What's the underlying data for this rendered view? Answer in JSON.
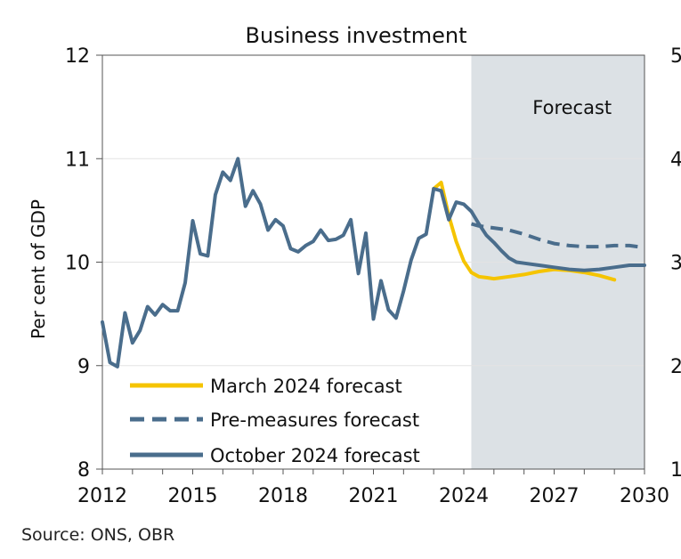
{
  "chart_data": {
    "type": "line",
    "title": "Business investment",
    "ylabel": "Per cent of GDP",
    "xlabel": "",
    "ylim": [
      8,
      12
    ],
    "yticks": [
      8,
      9,
      10,
      11,
      12
    ],
    "xlim": [
      2012,
      2030
    ],
    "xticks": [
      "2012",
      "2015",
      "2018",
      "2021",
      "2024",
      "2027",
      "2030"
    ],
    "forecast_region": {
      "label": "Forecast",
      "start": 2024.25,
      "end": 2030
    },
    "right_axis_partial_ticks": [
      "5",
      "4",
      "3",
      "2",
      "1"
    ],
    "legend": [
      "March 2024 forecast",
      "Pre-measures forecast",
      "October 2024 forecast"
    ],
    "series": [
      {
        "name": "October 2024 forecast",
        "style": "solid",
        "color": "#4a6d8c",
        "x": [
          2012.0,
          2012.25,
          2012.5,
          2012.75,
          2013.0,
          2013.25,
          2013.5,
          2013.75,
          2014.0,
          2014.25,
          2014.5,
          2014.75,
          2015.0,
          2015.25,
          2015.5,
          2015.75,
          2016.0,
          2016.25,
          2016.5,
          2016.75,
          2017.0,
          2017.25,
          2017.5,
          2017.75,
          2018.0,
          2018.25,
          2018.5,
          2018.75,
          2019.0,
          2019.25,
          2019.5,
          2019.75,
          2020.0,
          2020.25,
          2020.5,
          2020.75,
          2021.0,
          2021.25,
          2021.5,
          2021.75,
          2022.0,
          2022.25,
          2022.5,
          2022.75,
          2023.0,
          2023.25,
          2023.5,
          2023.75,
          2024.0,
          2024.25,
          2024.5,
          2024.75,
          2025.0,
          2025.25,
          2025.5,
          2025.75,
          2026.0,
          2026.5,
          2027.0,
          2027.5,
          2028.0,
          2028.5,
          2029.0,
          2029.5,
          2030.0
        ],
        "values": [
          9.42,
          9.03,
          8.99,
          9.51,
          9.22,
          9.34,
          9.57,
          9.49,
          9.59,
          9.53,
          9.53,
          9.8,
          10.4,
          10.08,
          10.06,
          10.65,
          10.87,
          10.79,
          11.0,
          10.54,
          10.69,
          10.56,
          10.31,
          10.41,
          10.35,
          10.13,
          10.1,
          10.16,
          10.2,
          10.31,
          10.21,
          10.22,
          10.26,
          10.41,
          9.89,
          10.28,
          9.45,
          9.82,
          9.54,
          9.46,
          9.72,
          10.02,
          10.23,
          10.27,
          10.71,
          10.69,
          10.41,
          10.58,
          10.56,
          10.49,
          10.37,
          10.26,
          10.19,
          10.11,
          10.04,
          10.0,
          9.99,
          9.97,
          9.95,
          9.93,
          9.92,
          9.93,
          9.95,
          9.97,
          9.97
        ]
      },
      {
        "name": "March 2024 forecast",
        "style": "solid",
        "color": "#f5c400",
        "x": [
          2023.0,
          2023.25,
          2023.5,
          2023.75,
          2024.0,
          2024.25,
          2024.5,
          2024.75,
          2025.0,
          2025.5,
          2026.0,
          2026.5,
          2027.0,
          2027.5,
          2028.0,
          2028.5,
          2029.0
        ],
        "values": [
          10.71,
          10.77,
          10.45,
          10.2,
          10.01,
          9.9,
          9.86,
          9.85,
          9.84,
          9.86,
          9.88,
          9.91,
          9.93,
          9.92,
          9.9,
          9.87,
          9.83
        ]
      },
      {
        "name": "Pre-measures forecast",
        "style": "dashed",
        "color": "#4a6d8c",
        "x": [
          2024.25,
          2024.5,
          2024.75,
          2025.0,
          2025.5,
          2026.0,
          2026.5,
          2027.0,
          2027.5,
          2028.0,
          2028.5,
          2029.0,
          2029.5,
          2030.0
        ],
        "values": [
          10.37,
          10.35,
          10.34,
          10.33,
          10.31,
          10.27,
          10.22,
          10.18,
          10.16,
          10.15,
          10.15,
          10.16,
          10.16,
          10.14
        ]
      }
    ]
  },
  "source": "Source: ONS, OBR"
}
